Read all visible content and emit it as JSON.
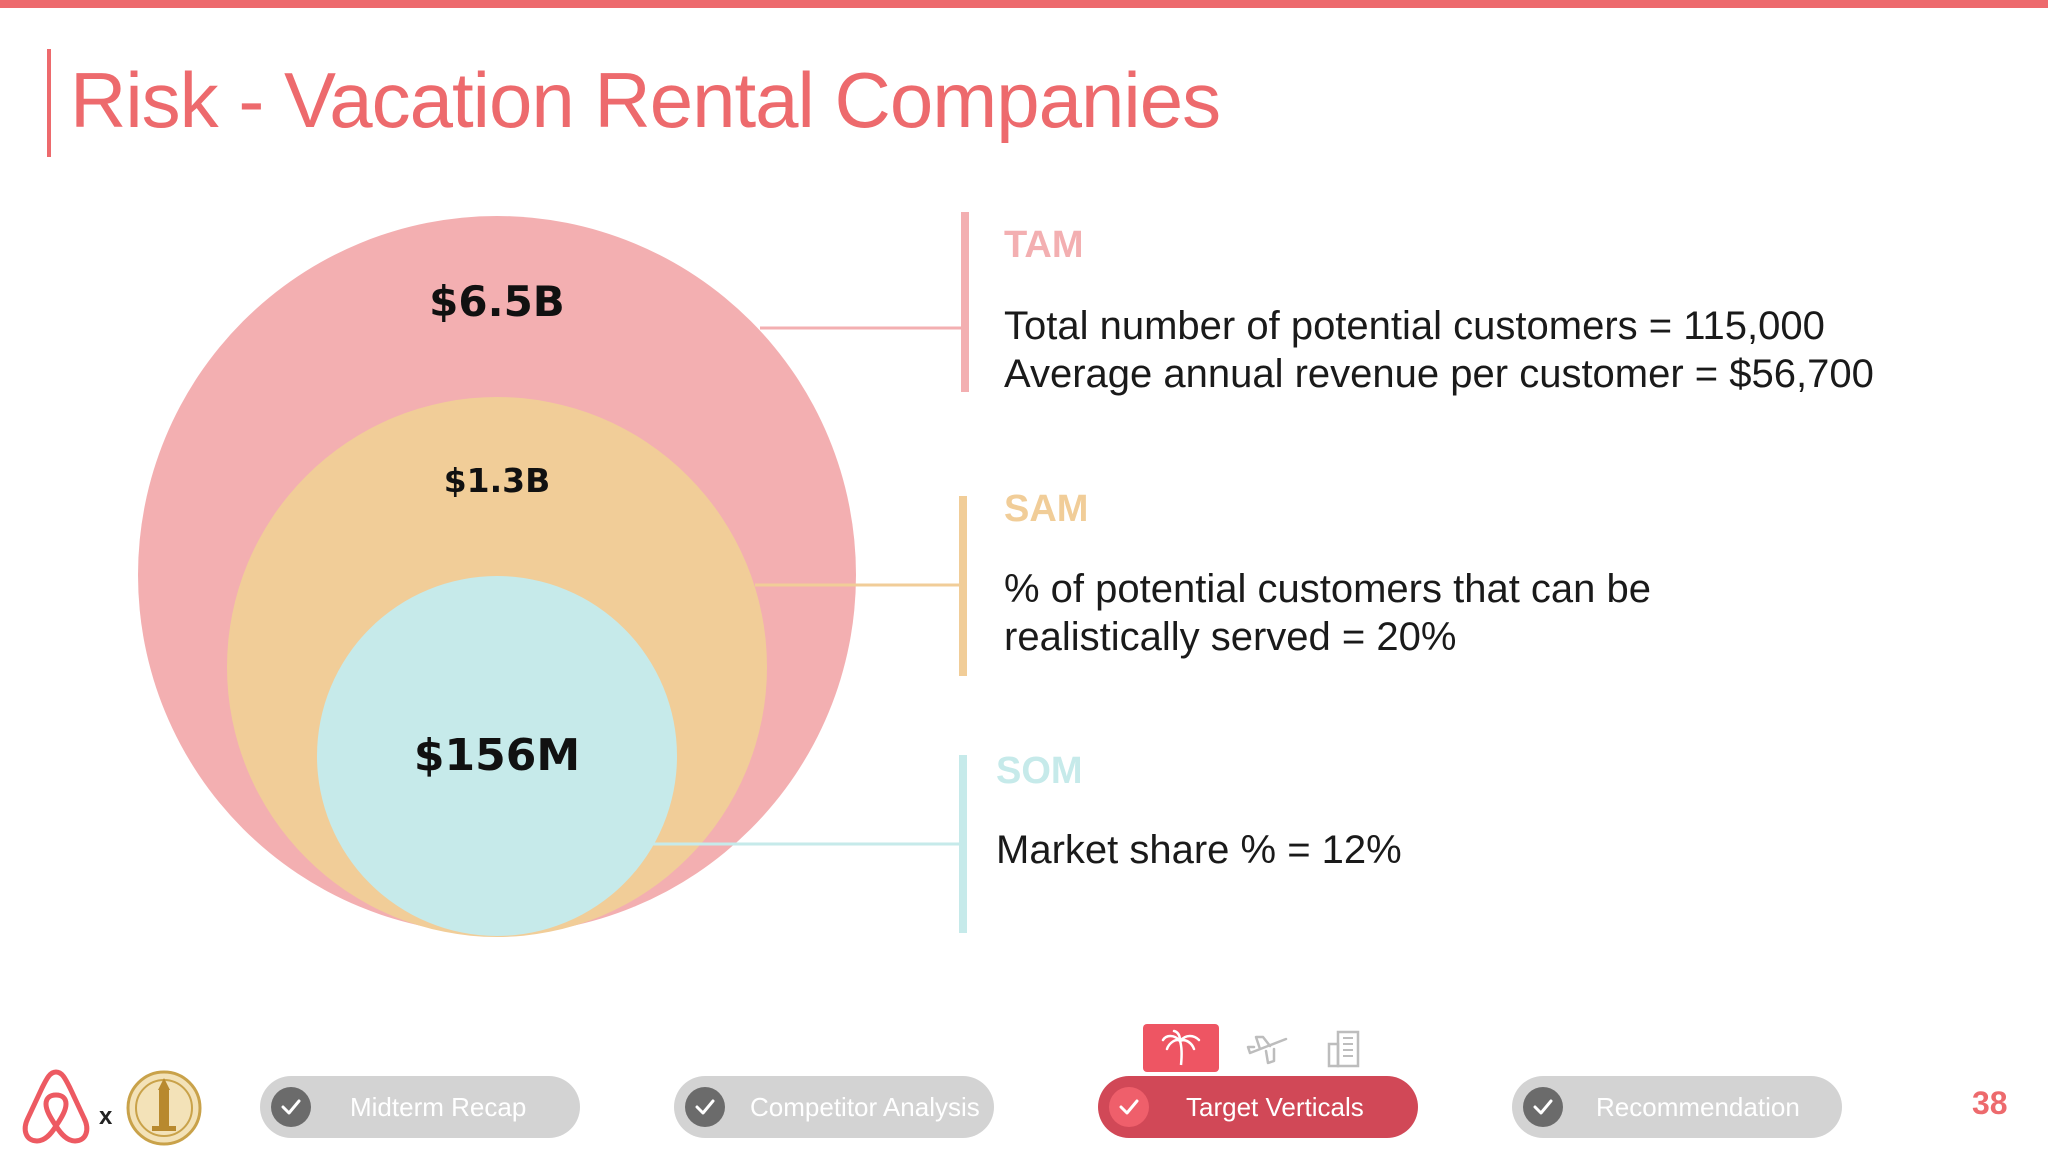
{
  "slide": {
    "title": "Risk - Vacation Rental Companies",
    "page_number": "38"
  },
  "colors": {
    "accent": "#ED6A6D",
    "tam": "#F3AFB1",
    "sam": "#F1CD98",
    "som": "#C6EAEA",
    "nav_inactive": "#D3D3D3",
    "nav_active": "#D14857"
  },
  "market_sizing": {
    "tam": {
      "circle_value": "$6.5B",
      "heading": "TAM",
      "lines": [
        "Total number of potential customers = 115,000",
        "Average annual revenue per customer = $56,700"
      ]
    },
    "sam": {
      "circle_value": "$1.3B",
      "heading": "SAM",
      "lines": [
        "% of potential customers that can be",
        "realistically served = 20%"
      ]
    },
    "som": {
      "circle_value": "$156M",
      "heading": "SOM",
      "lines": [
        "Market share % = 12%"
      ]
    }
  },
  "footer": {
    "logo_separator": "x",
    "nav": [
      {
        "label": "Midterm Recap",
        "active": false,
        "icon": "check-icon"
      },
      {
        "label": "Competitor Analysis",
        "active": false,
        "icon": "check-icon"
      },
      {
        "label": "Target Verticals",
        "active": true,
        "icon": "check-icon"
      },
      {
        "label": "Recommendation",
        "active": false,
        "icon": "check-icon"
      }
    ],
    "vertical_icons": [
      {
        "name": "palm-tree-icon",
        "active": true
      },
      {
        "name": "airplane-icon",
        "active": false
      },
      {
        "name": "building-icon",
        "active": false
      }
    ]
  }
}
